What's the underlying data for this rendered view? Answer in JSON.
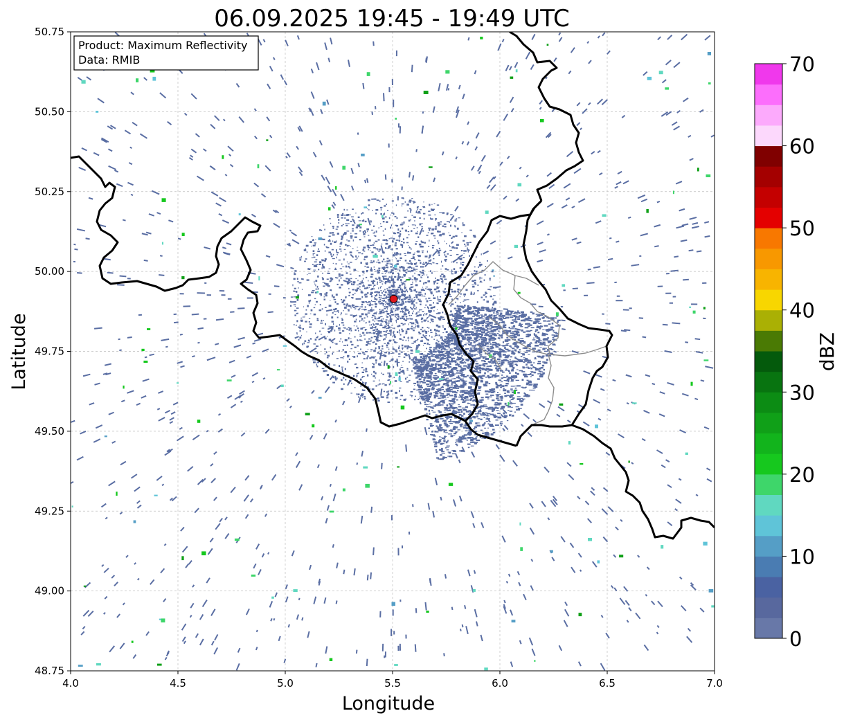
{
  "title": "06.09.2025 19:45 - 19:49 UTC",
  "info_box": {
    "product": "Product: Maximum Reflectivity",
    "source": "Data: RMIB"
  },
  "axes": {
    "xlabel": "Longitude",
    "ylabel": "Latitude",
    "xlim": [
      4.0,
      7.0
    ],
    "ylim": [
      48.75,
      50.75
    ],
    "xticks": [
      "4.0",
      "4.5",
      "5.0",
      "5.5",
      "6.0",
      "6.5",
      "7.0"
    ],
    "yticks": [
      "48.75",
      "49.00",
      "49.25",
      "49.50",
      "49.75",
      "50.00",
      "50.25",
      "50.50",
      "50.75"
    ],
    "grid": true
  },
  "radar_site": {
    "lon": 5.505,
    "lat": 49.914,
    "color": "#e0161c"
  },
  "colorbar": {
    "label": "dBZ",
    "min": 0,
    "max": 70,
    "step": 2.5,
    "ticks": [
      "0",
      "10",
      "20",
      "30",
      "40",
      "50",
      "60",
      "70"
    ],
    "colors": [
      "#6878a8",
      "#58689e",
      "#4a62a2",
      "#4a7cb2",
      "#559ec6",
      "#5fc4d8",
      "#60d8c0",
      "#3ed66a",
      "#16c81e",
      "#12b41c",
      "#10a018",
      "#0c8c14",
      "#087410",
      "#045a0c",
      "#4a7a04",
      "#aab004",
      "#f8d600",
      "#f8b400",
      "#f89800",
      "#f87800",
      "#e40000",
      "#c40000",
      "#a40000",
      "#800000",
      "#fcd8fc",
      "#fcaafc",
      "#fc6efc",
      "#f038ec"
    ]
  },
  "map_colors": {
    "borders": "#000000",
    "sub_borders": "#8c8c8c",
    "grid": "#bdbdbd",
    "echo": "#5a6ea3"
  }
}
